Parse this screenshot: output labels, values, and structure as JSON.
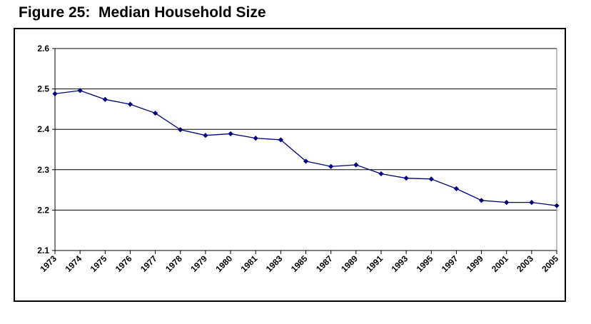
{
  "figure_title": "Figure 25:  Median Household Size",
  "colors": {
    "line": "#000080",
    "grid": "#000000",
    "axis": "#808080"
  },
  "chart_data": {
    "type": "line",
    "title": "",
    "xlabel": "",
    "ylabel": "",
    "ylim": [
      2.1,
      2.6
    ],
    "yticks": [
      "2.1",
      "2.2",
      "2.3",
      "2.4",
      "2.5",
      "2.6"
    ],
    "grid": true,
    "legend": "none",
    "categories": [
      "1973",
      "1974",
      "1975",
      "1976",
      "1977",
      "1978",
      "1979",
      "1980",
      "1981",
      "1983",
      "1985",
      "1987",
      "1989",
      "1991",
      "1993",
      "1995",
      "1997",
      "1999",
      "2001",
      "2003",
      "2005"
    ],
    "series": [
      {
        "values": [
          2.488,
          2.496,
          2.474,
          2.462,
          2.44,
          2.399,
          2.385,
          2.389,
          2.378,
          2.374,
          2.321,
          2.308,
          2.312,
          2.29,
          2.279,
          2.277,
          2.253,
          2.224,
          2.219,
          2.219,
          2.211
        ]
      }
    ]
  }
}
